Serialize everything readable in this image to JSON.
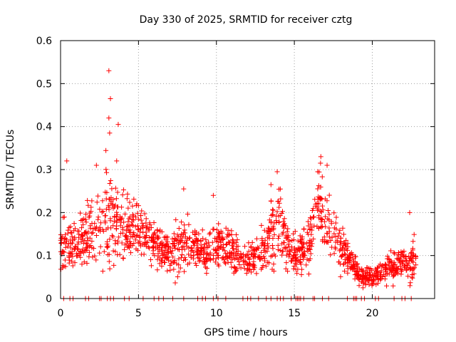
{
  "chart_data": {
    "type": "scatter",
    "title": "Day 330 of 2025, SRMTID for receiver cztg",
    "xlabel": "GPS time / hours",
    "ylabel": "SRMTID / TECUs",
    "xlim": [
      0,
      24
    ],
    "ylim": [
      0,
      0.6
    ],
    "xticks": [
      0,
      5,
      10,
      15,
      20
    ],
    "yticks": [
      0,
      0.1,
      0.2,
      0.3,
      0.4,
      0.5,
      0.6
    ],
    "xtick_labels": [
      "0",
      "5",
      "10",
      "15",
      "20"
    ],
    "ytick_labels": [
      "0",
      "0.1",
      "0.2",
      "0.3",
      "0.4",
      "0.5",
      "0.6"
    ],
    "grid": true,
    "marker": "+",
    "marker_color": "#ff0000",
    "point_count": 1500,
    "points_x_range": [
      0,
      22.8
    ],
    "series": [
      {
        "name": "SRMTID",
        "envelope_x": [
          0.0,
          0.5,
          1.0,
          1.5,
          2.0,
          2.5,
          3.0,
          3.5,
          4.0,
          4.5,
          5.0,
          5.5,
          6.0,
          6.5,
          7.0,
          7.5,
          8.0,
          8.5,
          9.0,
          9.5,
          10.0,
          10.5,
          11.0,
          11.5,
          12.0,
          12.5,
          13.0,
          13.5,
          14.0,
          14.5,
          15.0,
          15.5,
          16.0,
          16.5,
          17.0,
          17.5,
          18.0,
          18.5,
          19.0,
          19.5,
          20.0,
          20.5,
          21.0,
          21.5,
          22.0,
          22.5,
          22.8
        ],
        "envelope_mean": [
          0.13,
          0.12,
          0.12,
          0.14,
          0.16,
          0.17,
          0.2,
          0.18,
          0.17,
          0.16,
          0.17,
          0.15,
          0.13,
          0.12,
          0.11,
          0.12,
          0.13,
          0.12,
          0.11,
          0.1,
          0.13,
          0.12,
          0.11,
          0.1,
          0.09,
          0.1,
          0.11,
          0.15,
          0.18,
          0.12,
          0.1,
          0.11,
          0.14,
          0.22,
          0.19,
          0.15,
          0.11,
          0.09,
          0.06,
          0.05,
          0.05,
          0.06,
          0.07,
          0.08,
          0.09,
          0.09,
          0.1
        ],
        "envelope_spread": [
          0.05,
          0.05,
          0.05,
          0.06,
          0.07,
          0.08,
          0.12,
          0.08,
          0.07,
          0.05,
          0.05,
          0.05,
          0.04,
          0.04,
          0.04,
          0.05,
          0.05,
          0.04,
          0.04,
          0.04,
          0.05,
          0.04,
          0.04,
          0.03,
          0.03,
          0.03,
          0.04,
          0.06,
          0.07,
          0.05,
          0.04,
          0.04,
          0.05,
          0.07,
          0.06,
          0.05,
          0.04,
          0.03,
          0.02,
          0.02,
          0.02,
          0.02,
          0.03,
          0.03,
          0.03,
          0.04,
          0.04
        ],
        "peaks": [
          {
            "x": 3.1,
            "y": 0.53
          },
          {
            "x": 3.2,
            "y": 0.465
          },
          {
            "x": 3.1,
            "y": 0.42
          },
          {
            "x": 3.7,
            "y": 0.405
          },
          {
            "x": 3.15,
            "y": 0.385
          },
          {
            "x": 3.6,
            "y": 0.32
          },
          {
            "x": 0.4,
            "y": 0.32
          },
          {
            "x": 2.3,
            "y": 0.31
          },
          {
            "x": 13.5,
            "y": 0.265
          },
          {
            "x": 13.9,
            "y": 0.295
          },
          {
            "x": 16.7,
            "y": 0.33
          },
          {
            "x": 17.1,
            "y": 0.31
          },
          {
            "x": 16.5,
            "y": 0.295
          },
          {
            "x": 7.9,
            "y": 0.255
          },
          {
            "x": 9.8,
            "y": 0.24
          },
          {
            "x": 22.4,
            "y": 0.2
          }
        ],
        "zero_points_x": [
          0.2,
          0.6,
          0.8,
          1.6,
          1.8,
          2.5,
          2.6,
          3.0,
          3.2,
          3.4,
          4.1,
          4.4,
          5.3,
          6.0,
          6.3,
          6.6,
          7.2,
          7.9,
          8.8,
          9.1,
          9.3,
          9.8,
          10.1,
          10.6,
          11.7,
          12.0,
          12.2,
          12.7,
          13.2,
          13.5,
          13.9,
          14.1,
          14.3,
          14.8,
          15.1,
          15.2,
          15.3,
          15.4,
          15.6,
          16.2,
          16.3,
          16.8,
          17.2,
          18.4,
          18.8,
          18.9,
          19.0,
          19.3,
          19.5,
          20.2,
          20.4,
          21.4,
          21.9,
          22.1,
          22.5
        ]
      }
    ]
  }
}
